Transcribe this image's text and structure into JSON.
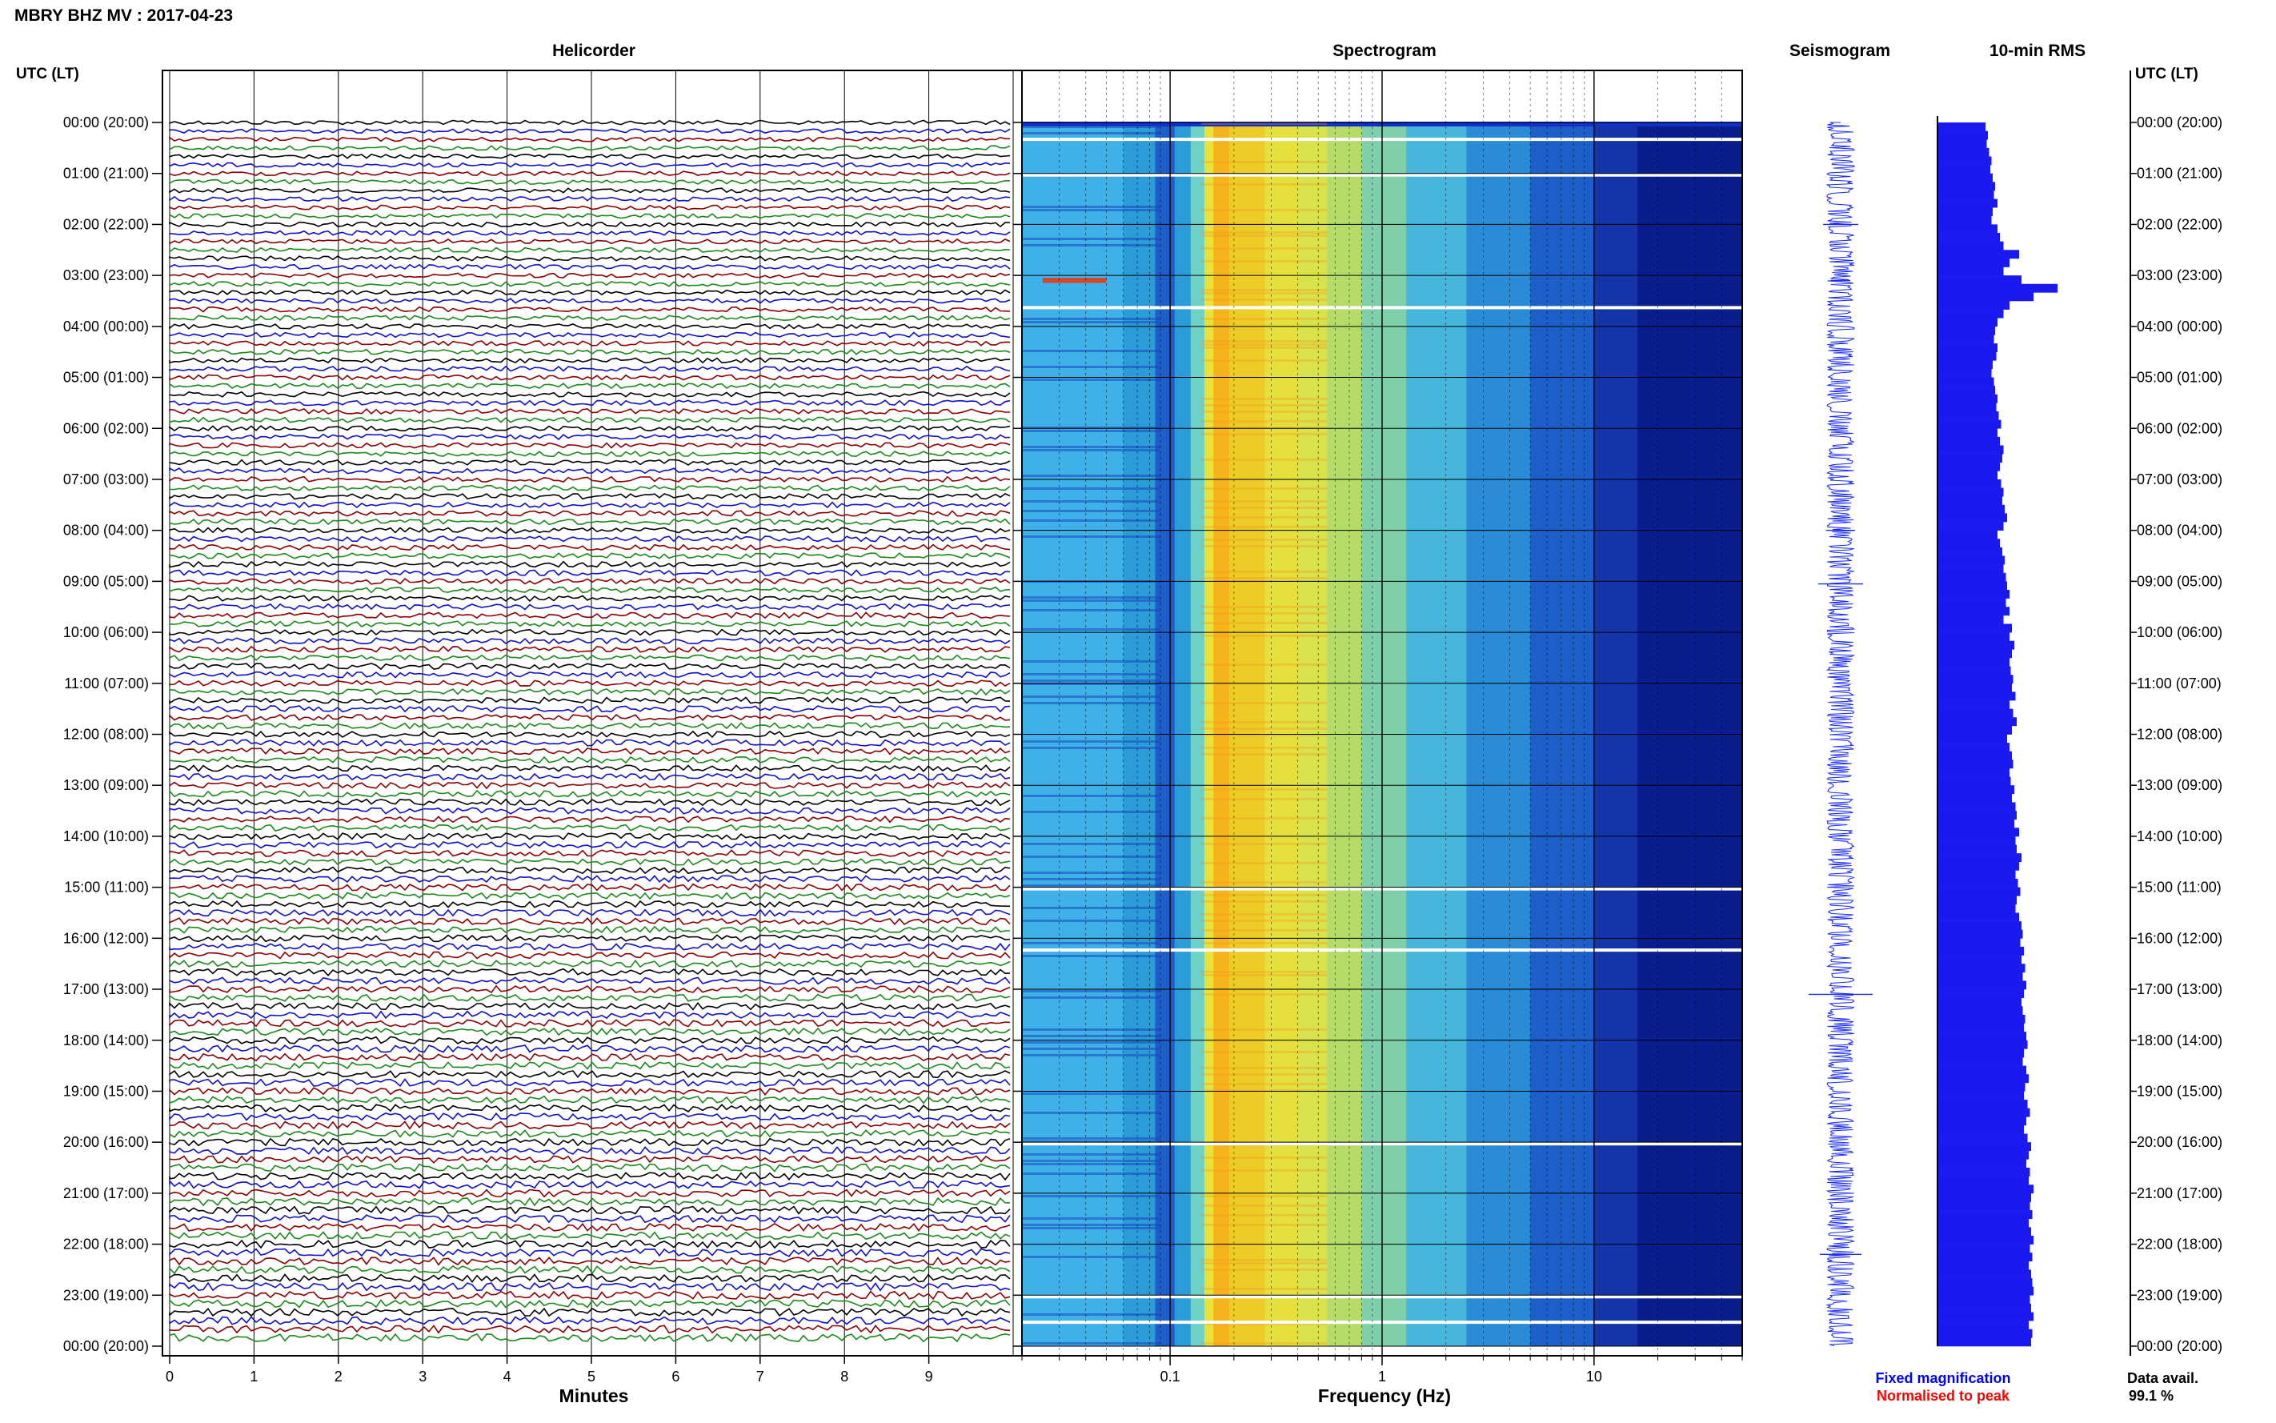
{
  "header": {
    "title": "MBRY BHZ MV : 2017-04-23"
  },
  "chart_data": {
    "type": "heatmap",
    "panels": {
      "helicorder": "Helicorder",
      "spectrogram": "Spectrogram",
      "seismogram": "Seismogram",
      "rms": "10-min RMS"
    },
    "time_axis_label": "UTC (LT)",
    "time_labels": [
      "00:00 (20:00)",
      "01:00 (21:00)",
      "02:00 (22:00)",
      "03:00 (23:00)",
      "04:00 (00:00)",
      "05:00 (01:00)",
      "06:00 (02:00)",
      "07:00 (03:00)",
      "08:00 (04:00)",
      "09:00 (05:00)",
      "10:00 (06:00)",
      "11:00 (07:00)",
      "12:00 (08:00)",
      "13:00 (09:00)",
      "14:00 (10:00)",
      "15:00 (11:00)",
      "16:00 (12:00)",
      "17:00 (13:00)",
      "18:00 (14:00)",
      "19:00 (15:00)",
      "20:00 (16:00)",
      "21:00 (17:00)",
      "22:00 (18:00)",
      "23:00 (19:00)",
      "00:00 (20:00)"
    ],
    "helicorder": {
      "xlabel": "Minutes",
      "xlim": [
        0,
        10
      ],
      "xticks": [
        "0",
        "1",
        "2",
        "3",
        "4",
        "5",
        "6",
        "7",
        "8",
        "9"
      ],
      "trace_colors": [
        "#000000",
        "#1010c8",
        "#8b0000",
        "#1a8a1a"
      ],
      "traces_per_hour": 6
    },
    "spectrogram": {
      "xlabel": "Frequency (Hz)",
      "xscale": "log",
      "xlim": [
        0.02,
        50
      ],
      "xticks": [
        "0.1",
        "1",
        "10"
      ],
      "band_peak_hz": [
        0.14,
        0.4
      ],
      "data_gaps_utc_hours": [
        0.3,
        1.0,
        3.6,
        15.0,
        16.2,
        20.0,
        23.0,
        23.5
      ]
    },
    "rms": {
      "interval_minutes": 10,
      "relative_values": [
        0.4,
        0.42,
        0.41,
        0.43,
        0.45,
        0.44,
        0.46,
        0.48,
        0.47,
        0.5,
        0.46,
        0.45,
        0.5,
        0.52,
        0.55,
        0.68,
        0.6,
        0.55,
        0.7,
        1.0,
        0.8,
        0.6,
        0.55,
        0.5,
        0.48,
        0.47,
        0.5,
        0.49,
        0.46,
        0.45,
        0.47,
        0.48,
        0.5,
        0.49,
        0.51,
        0.53,
        0.5,
        0.52,
        0.55,
        0.54,
        0.52,
        0.5,
        0.53,
        0.55,
        0.54,
        0.56,
        0.58,
        0.55,
        0.5,
        0.52,
        0.54,
        0.56,
        0.55,
        0.57,
        0.58,
        0.6,
        0.57,
        0.6,
        0.55,
        0.62,
        0.6,
        0.64,
        0.62,
        0.6,
        0.61,
        0.63,
        0.62,
        0.65,
        0.6,
        0.63,
        0.66,
        0.62,
        0.58,
        0.6,
        0.62,
        0.63,
        0.6,
        0.61,
        0.64,
        0.62,
        0.65,
        0.66,
        0.64,
        0.68,
        0.65,
        0.66,
        0.7,
        0.68,
        0.65,
        0.67,
        0.69,
        0.66,
        0.65,
        0.68,
        0.7,
        0.71,
        0.69,
        0.72,
        0.7,
        0.73,
        0.71,
        0.74,
        0.72,
        0.7,
        0.71,
        0.73,
        0.72,
        0.74,
        0.75,
        0.72,
        0.71,
        0.74,
        0.76,
        0.73,
        0.72,
        0.75,
        0.77,
        0.74,
        0.72,
        0.75,
        0.78,
        0.76,
        0.74,
        0.77,
        0.76,
        0.8,
        0.78,
        0.77,
        0.79,
        0.76,
        0.78,
        0.8,
        0.77,
        0.79,
        0.76,
        0.78,
        0.79,
        0.8,
        0.77,
        0.78,
        0.8,
        0.76,
        0.79,
        0.78
      ]
    },
    "legend": {
      "fixed": {
        "label": "Fixed magnification",
        "color": "#0000ff"
      },
      "normalised": {
        "label": "Normalised to peak",
        "color": "#ff0000"
      }
    },
    "availability": {
      "label": "Data avail.",
      "value": "99.1 %"
    }
  }
}
